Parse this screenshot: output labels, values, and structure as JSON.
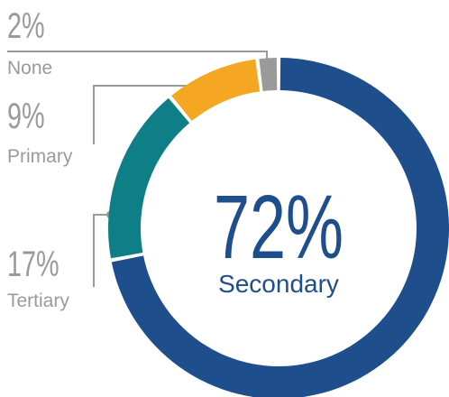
{
  "chart_data": {
    "type": "pie",
    "categories": [
      "Secondary",
      "Tertiary",
      "Primary",
      "None"
    ],
    "values": [
      72,
      17,
      9,
      2
    ],
    "value_labels": [
      "72%",
      "17%",
      "9%",
      "2%"
    ],
    "colors": [
      "#1f4e8c",
      "#0f7f87",
      "#f5a623",
      "#9a9a9a"
    ]
  }
}
